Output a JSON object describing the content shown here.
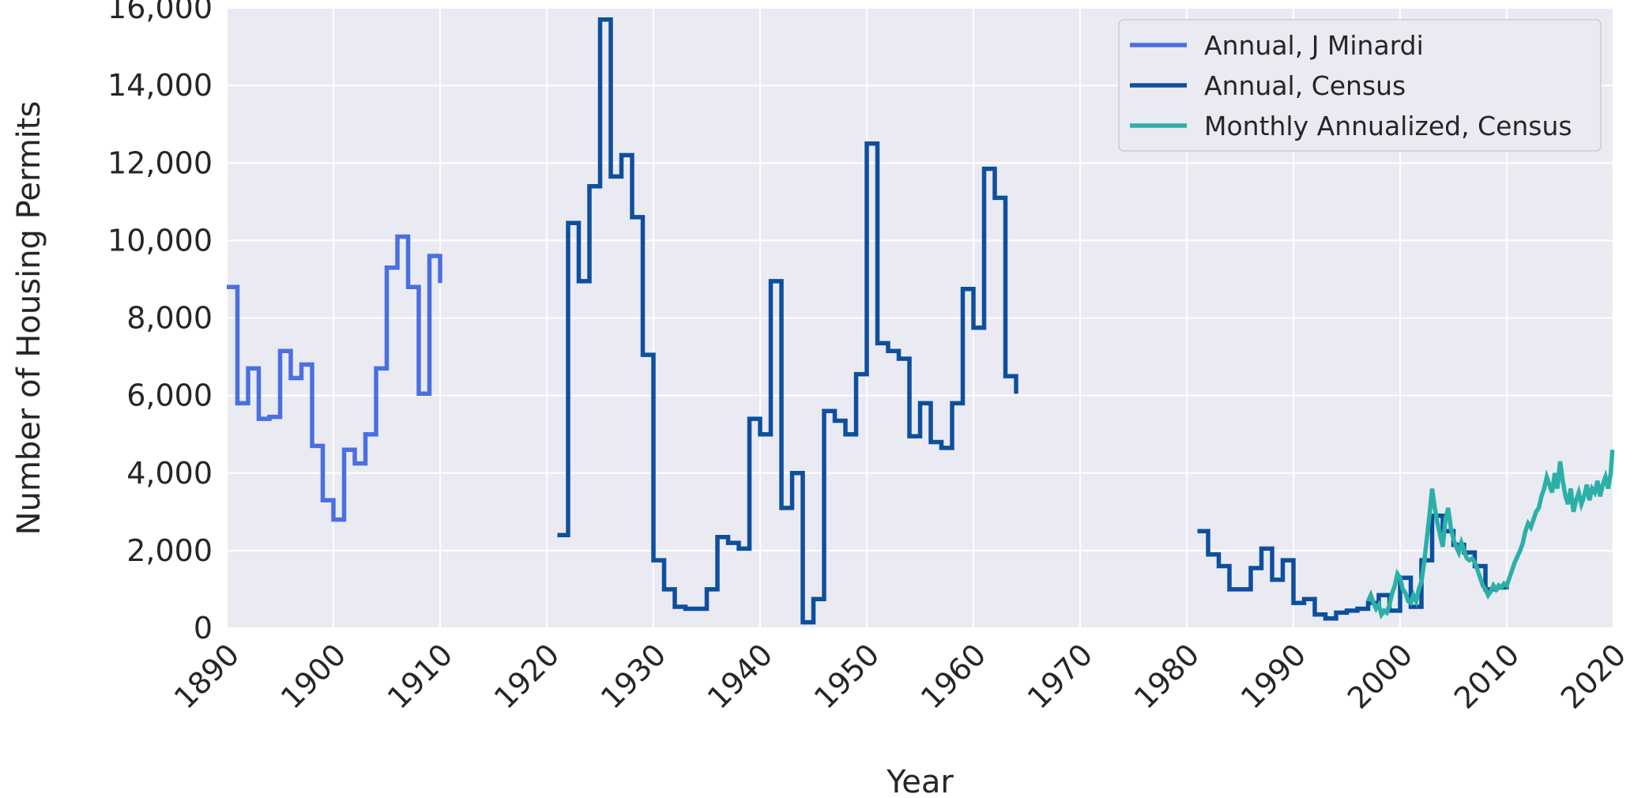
{
  "chart_data": {
    "type": "line",
    "xlabel": "Year",
    "ylabel": "Number of Housing Permits",
    "xlim": [
      1890,
      2020
    ],
    "ylim": [
      0,
      16000
    ],
    "x_ticks": [
      1890,
      1900,
      1910,
      1920,
      1930,
      1940,
      1950,
      1960,
      1970,
      1980,
      1990,
      2000,
      2010,
      2020
    ],
    "x_tick_labels": [
      "1890",
      "1900",
      "1910",
      "1920",
      "1930",
      "1940",
      "1950",
      "1960",
      "1970",
      "1980",
      "1990",
      "2000",
      "2010",
      "2020"
    ],
    "y_ticks": [
      0,
      2000,
      4000,
      6000,
      8000,
      10000,
      12000,
      14000,
      16000
    ],
    "y_tick_labels": [
      "0",
      "2,000",
      "4,000",
      "6,000",
      "8,000",
      "10,000",
      "12,000",
      "14,000",
      "16,000"
    ],
    "grid": true,
    "legend_position": "top-right",
    "background_color": "#eaeaf2",
    "series": [
      {
        "name": "Annual, J Minardi",
        "color": "#4a6fe3",
        "step": true,
        "x": [
          1890,
          1891,
          1892,
          1893,
          1894,
          1895,
          1896,
          1897,
          1898,
          1899,
          1900,
          1901,
          1902,
          1903,
          1904,
          1905,
          1906,
          1907,
          1908,
          1909,
          1910
        ],
        "y": [
          8800,
          5800,
          6700,
          5400,
          5450,
          7150,
          6450,
          6800,
          4700,
          3300,
          2800,
          4600,
          4250,
          5000,
          6700,
          9300,
          10100,
          8800,
          6050,
          9600,
          8900
        ]
      },
      {
        "name": "Annual, Census",
        "color": "#0d4f9c",
        "step": true,
        "x": [
          1921,
          1922,
          1923,
          1924,
          1925,
          1926,
          1927,
          1928,
          1929,
          1930,
          1931,
          1932,
          1933,
          1934,
          1935,
          1936,
          1937,
          1938,
          1939,
          1940,
          1941,
          1942,
          1943,
          1944,
          1945,
          1946,
          1947,
          1948,
          1949,
          1950,
          1951,
          1952,
          1953,
          1954,
          1955,
          1956,
          1957,
          1958,
          1959,
          1960,
          1961,
          1962,
          1963,
          1964
        ],
        "y": [
          2400,
          10450,
          8950,
          11400,
          15700,
          11650,
          12200,
          10600,
          7050,
          1750,
          1000,
          550,
          500,
          500,
          1000,
          2350,
          2200,
          2050,
          5400,
          5000,
          8950,
          3100,
          4000,
          150,
          750,
          5600,
          5350,
          5000,
          6550,
          12500,
          7350,
          7150,
          6950,
          4950,
          5800,
          4800,
          4650,
          5800,
          8750,
          7750,
          11850,
          11100,
          6500,
          6050
        ]
      },
      {
        "name": "Annual, Census",
        "color": "#0d4f9c",
        "step": true,
        "x": [
          1981,
          1982,
          1983,
          1984,
          1985,
          1986,
          1987,
          1988,
          1989,
          1990,
          1991,
          1992,
          1993,
          1994,
          1995,
          1996,
          1997,
          1998,
          1999,
          2000,
          2001,
          2002,
          2003,
          2004,
          2005,
          2006,
          2007,
          2008,
          2009,
          2010
        ],
        "y": [
          2500,
          1900,
          1600,
          1000,
          1000,
          1550,
          2050,
          1250,
          1750,
          650,
          750,
          350,
          250,
          400,
          450,
          500,
          650,
          850,
          450,
          1300,
          550,
          1750,
          2900,
          2500,
          2150,
          1950,
          1600,
          1000,
          1050,
          1000
        ]
      },
      {
        "name": "Monthly Annualized, Census",
        "color": "#2bb0a8",
        "step": false,
        "x": [
          1997.0,
          1997.25,
          1997.5,
          1997.75,
          1998.0,
          1998.25,
          1998.5,
          1998.75,
          1999.0,
          1999.25,
          1999.5,
          1999.75,
          2000.0,
          2000.25,
          2000.5,
          2000.75,
          2001.0,
          2001.25,
          2001.5,
          2001.75,
          2002.0,
          2002.25,
          2002.5,
          2002.75,
          2003.0,
          2003.25,
          2003.5,
          2003.75,
          2004.0,
          2004.25,
          2004.5,
          2004.75,
          2005.0,
          2005.25,
          2005.5,
          2005.75,
          2006.0,
          2006.25,
          2006.5,
          2006.75,
          2007.0,
          2007.25,
          2007.5,
          2007.75,
          2008.0,
          2008.25,
          2008.5,
          2008.75,
          2009.0,
          2009.25,
          2009.5,
          2009.75,
          2010.0,
          2010.25,
          2010.5,
          2010.75,
          2011.0,
          2011.25,
          2011.5,
          2011.75,
          2012.0,
          2012.25,
          2012.5,
          2012.75,
          2013.0,
          2013.25,
          2013.5,
          2013.75,
          2014.0,
          2014.25,
          2014.5,
          2014.75,
          2015.0,
          2015.25,
          2015.5,
          2015.75,
          2016.0,
          2016.25,
          2016.5,
          2016.75,
          2017.0,
          2017.25,
          2017.5,
          2017.75,
          2018.0,
          2018.25,
          2018.5,
          2018.75,
          2019.0,
          2019.25,
          2019.5,
          2019.75,
          2019.9
        ],
        "y": [
          700,
          850,
          650,
          500,
          600,
          350,
          450,
          400,
          600,
          900,
          1100,
          1400,
          1300,
          1000,
          900,
          700,
          650,
          850,
          700,
          1000,
          1200,
          1700,
          2300,
          2900,
          3600,
          3100,
          2700,
          2400,
          2100,
          2800,
          3100,
          2600,
          2300,
          2100,
          1950,
          2200,
          2000,
          1800,
          1750,
          1800,
          1700,
          1500,
          1300,
          1100,
          1000,
          850,
          950,
          1100,
          1000,
          1100,
          1050,
          1150,
          1100,
          1300,
          1500,
          1700,
          1850,
          2000,
          2200,
          2500,
          2700,
          2600,
          2800,
          3000,
          3100,
          3400,
          3600,
          3900,
          3700,
          3500,
          4000,
          3600,
          4300,
          3800,
          3400,
          3200,
          3600,
          3000,
          3300,
          3500,
          3200,
          3400,
          3700,
          3300,
          3600,
          3500,
          3800,
          3400,
          3700,
          3900,
          3600,
          4000,
          4600
        ]
      }
    ]
  }
}
